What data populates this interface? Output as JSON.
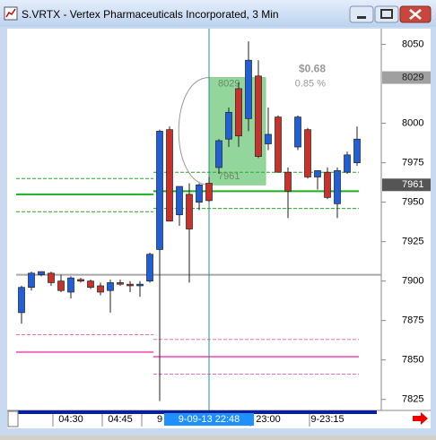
{
  "window": {
    "title": "S.VRTX - Vertex Pharmaceuticals Incorporated, 3 Min"
  },
  "chart_data": {
    "type": "candlestick",
    "categories": [
      null,
      null,
      null,
      null,
      null,
      "04:30",
      null,
      null,
      null,
      null,
      "04:45",
      null,
      null,
      null,
      "9",
      null,
      null,
      null,
      null,
      null,
      null,
      null,
      null,
      null,
      null,
      "23:00",
      null,
      null,
      null,
      null,
      null,
      "9-23:15",
      null,
      null,
      null
    ],
    "open": [
      7880,
      7896,
      7904,
      7905,
      7900,
      7893,
      7901,
      7900,
      7897,
      7894,
      7899,
      7898,
      7897,
      7900,
      7920,
      7996,
      7942,
      7955,
      7950,
      7962,
      7972,
      7990,
      8022,
      8003,
      8030,
      7987,
      8004,
      7969,
      7985,
      7996,
      7966,
      7969,
      7949,
      7969,
      7975
    ],
    "high": [
      7897,
      7906,
      7906,
      7906,
      7904,
      7903,
      7902,
      7901,
      7899,
      7901,
      7901,
      7900,
      7900,
      7918,
      7996,
      7998,
      7960,
      7962,
      7962,
      7966,
      7990,
      8010,
      8026,
      8052,
      8040,
      8010,
      8005,
      7972,
      8005,
      7997,
      7970,
      7972,
      7972,
      7982,
      7998
    ],
    "low": [
      7873,
      7894,
      7903,
      7897,
      7893,
      7889,
      7899,
      7895,
      7891,
      7880,
      7897,
      7893,
      7890,
      7899,
      7824,
      7940,
      7935,
      7899,
      7945,
      7950,
      7968,
      7985,
      7985,
      7995,
      7978,
      7983,
      7969,
      7940,
      7983,
      7965,
      7958,
      7952,
      7940,
      7968,
      7973
    ],
    "close": [
      7896,
      7905,
      7906,
      7899,
      7894,
      7902,
      7900,
      7896,
      7893,
      7899,
      7898,
      7897,
      7898,
      7917,
      7995,
      7938,
      7960,
      7933,
      7961,
      7951,
      7989,
      8007,
      7992,
      8040,
      7979,
      7993,
      7969,
      7957,
      8004,
      7966,
      7970,
      7953,
      7970,
      7980,
      7990
    ],
    "up_color": "#1f5fd8",
    "down_color": "#c8322b",
    "ylim": [
      7818,
      8060
    ],
    "yticks": [
      7825,
      7850,
      7875,
      7900,
      7925,
      7950,
      7975,
      8000,
      8050
    ],
    "levels": [
      {
        "color": "#a8a8a8",
        "style": "solid",
        "values": [
          7904,
          7904
        ]
      },
      {
        "color": "#1fae1f",
        "style": "solid",
        "values": [
          7955,
          7957
        ]
      },
      {
        "color": "#1fae1f",
        "style": "dashed",
        "values": [
          7965,
          7969
        ]
      },
      {
        "color": "#1fae1f",
        "style": "dashed",
        "values": [
          7944,
          7946
        ]
      },
      {
        "color": "#ee6fc0",
        "style": "solid",
        "values": [
          7855,
          7852
        ]
      },
      {
        "color": "#ee6fc0",
        "style": "dashed",
        "values": [
          7866,
          7863
        ]
      },
      {
        "color": "#ee6fc0",
        "style": "dashed",
        "values": [
          null,
          7841
        ]
      }
    ],
    "crosshair": {
      "label": "9-09-13 22:48",
      "value": 7961
    },
    "annotation": {
      "high": 8029,
      "low": 7961,
      "change": "$0.68",
      "percent": "0.85 %"
    }
  }
}
